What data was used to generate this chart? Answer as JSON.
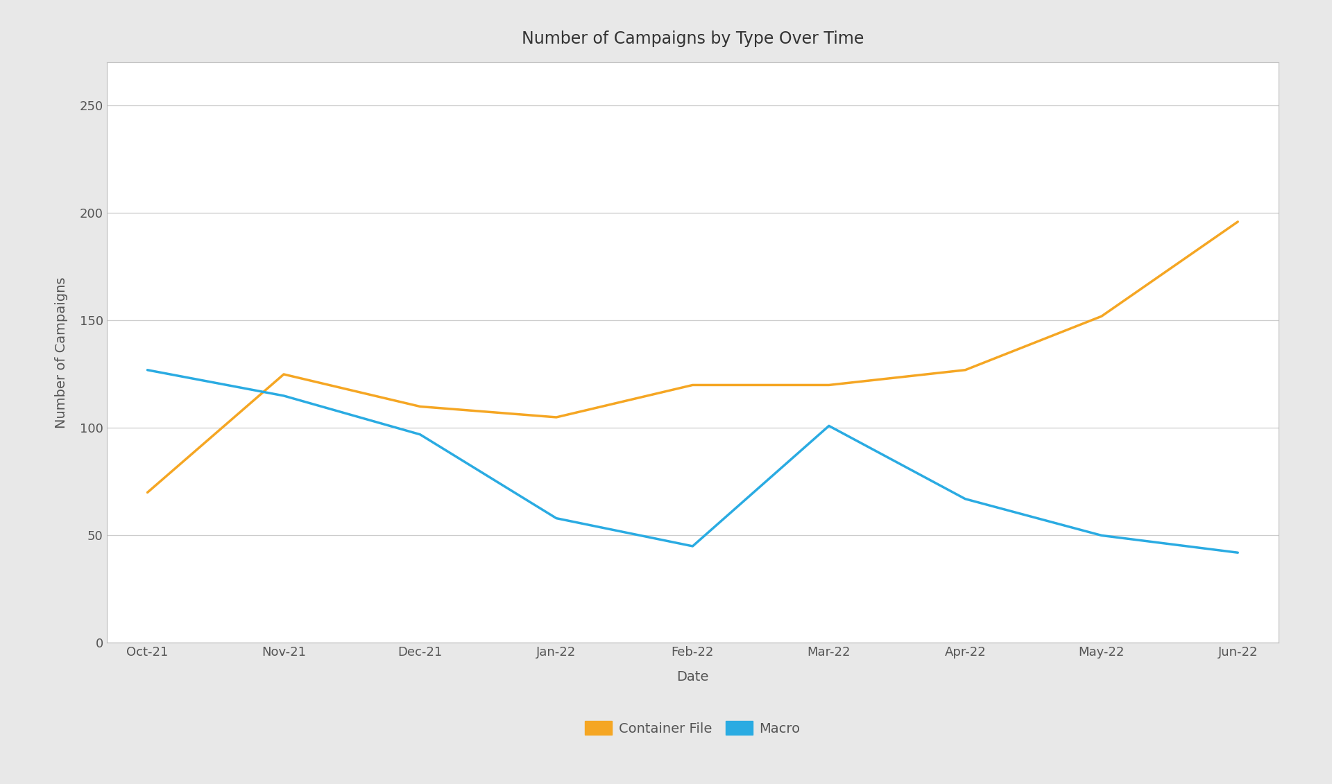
{
  "title": "Number of Campaigns by Type Over Time",
  "xlabel": "Date",
  "ylabel": "Number of Campaigns",
  "categories": [
    "Oct-21",
    "Nov-21",
    "Dec-21",
    "Jan-22",
    "Feb-22",
    "Mar-22",
    "Apr-22",
    "May-22",
    "Jun-22"
  ],
  "container_file": [
    70,
    125,
    110,
    105,
    120,
    120,
    127,
    152,
    196
  ],
  "macro": [
    127,
    115,
    97,
    58,
    45,
    101,
    67,
    50,
    42
  ],
  "container_color": "#F5A623",
  "macro_color": "#2AABE2",
  "ylim": [
    0,
    270
  ],
  "yticks": [
    0,
    50,
    100,
    150,
    200,
    250
  ],
  "line_width": 2.5,
  "outer_background": "#E8E8E8",
  "inner_background": "#FFFFFF",
  "grid_color": "#CCCCCC",
  "border_color": "#BBBBBB",
  "title_fontsize": 17,
  "axis_label_fontsize": 14,
  "tick_fontsize": 13,
  "legend_fontsize": 14
}
